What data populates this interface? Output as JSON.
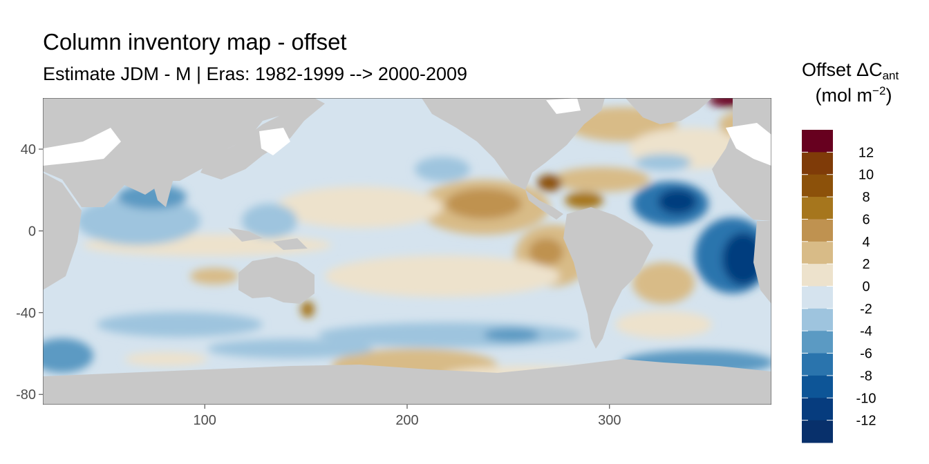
{
  "title": "Column inventory map - offset",
  "subtitle": "Estimate JDM - M | Eras: 1982-1999 --> 2000-2009",
  "legend": {
    "title_main": "Offset ΔC",
    "title_sub": "ant",
    "unit_prefix": "(mol m",
    "unit_sup": "−2",
    "unit_suffix": ")",
    "labels": [
      "12",
      "10",
      "8",
      "6",
      "4",
      "2",
      "0",
      "-2",
      "-4",
      "-6",
      "-8",
      "-10",
      "-12"
    ],
    "colors": [
      "#67001f",
      "#7f3b08",
      "#8c510a",
      "#a6761d",
      "#bf9250",
      "#d8bb87",
      "#ede2cc",
      "#d5e3ee",
      "#9ec4de",
      "#5b9ac3",
      "#2a74ad",
      "#0d5597",
      "#063c7e",
      "#08306b"
    ]
  },
  "axes": {
    "x_ticks": [
      "100",
      "200",
      "300"
    ],
    "y_ticks": [
      "40",
      "0",
      "-40",
      "-80"
    ],
    "x_range": [
      20,
      380
    ],
    "y_range": [
      -85,
      65
    ]
  },
  "colors": {
    "land": "#c8c8c8",
    "background": "#ffffff"
  }
}
